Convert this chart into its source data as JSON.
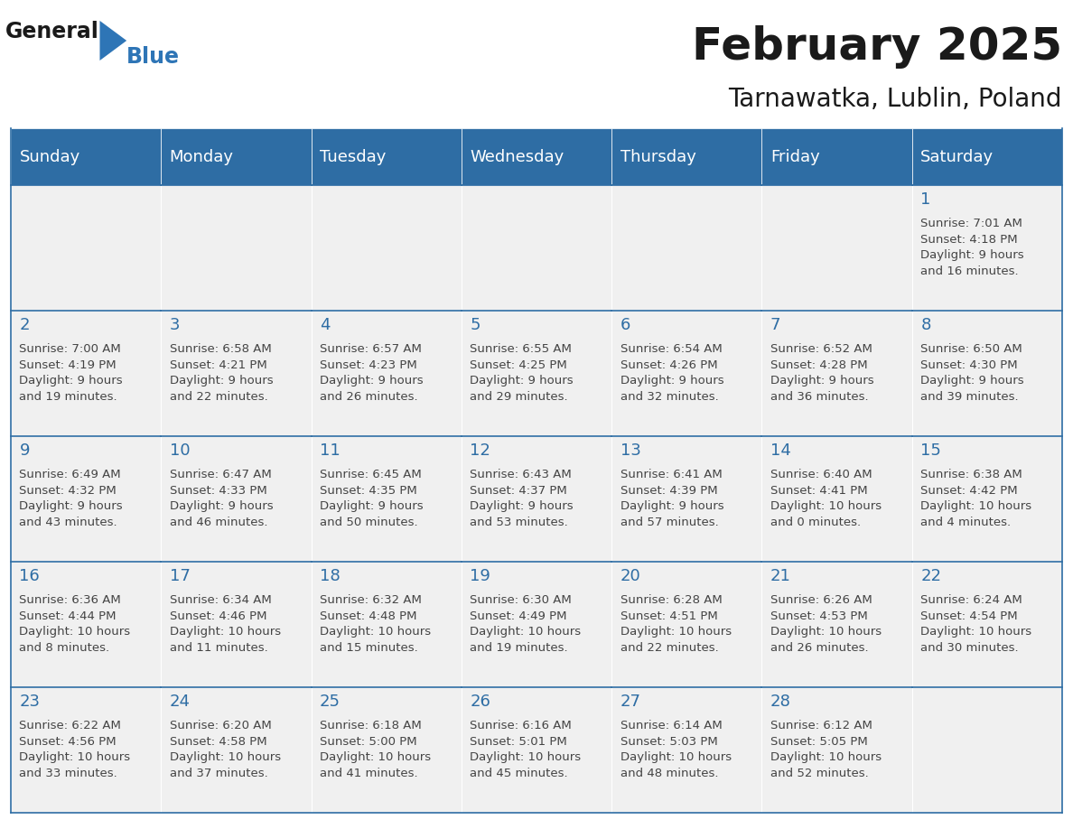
{
  "title": "February 2025",
  "subtitle": "Tarnawatka, Lublin, Poland",
  "header_bg": "#2E6DA4",
  "header_text_color": "#FFFFFF",
  "cell_bg_light": "#F0F0F0",
  "border_color": "#2E6DA4",
  "text_color": "#444444",
  "days_of_week": [
    "Sunday",
    "Monday",
    "Tuesday",
    "Wednesday",
    "Thursday",
    "Friday",
    "Saturday"
  ],
  "weeks": [
    [
      {
        "day": null,
        "info": null
      },
      {
        "day": null,
        "info": null
      },
      {
        "day": null,
        "info": null
      },
      {
        "day": null,
        "info": null
      },
      {
        "day": null,
        "info": null
      },
      {
        "day": null,
        "info": null
      },
      {
        "day": 1,
        "info": "Sunrise: 7:01 AM\nSunset: 4:18 PM\nDaylight: 9 hours\nand 16 minutes."
      }
    ],
    [
      {
        "day": 2,
        "info": "Sunrise: 7:00 AM\nSunset: 4:19 PM\nDaylight: 9 hours\nand 19 minutes."
      },
      {
        "day": 3,
        "info": "Sunrise: 6:58 AM\nSunset: 4:21 PM\nDaylight: 9 hours\nand 22 minutes."
      },
      {
        "day": 4,
        "info": "Sunrise: 6:57 AM\nSunset: 4:23 PM\nDaylight: 9 hours\nand 26 minutes."
      },
      {
        "day": 5,
        "info": "Sunrise: 6:55 AM\nSunset: 4:25 PM\nDaylight: 9 hours\nand 29 minutes."
      },
      {
        "day": 6,
        "info": "Sunrise: 6:54 AM\nSunset: 4:26 PM\nDaylight: 9 hours\nand 32 minutes."
      },
      {
        "day": 7,
        "info": "Sunrise: 6:52 AM\nSunset: 4:28 PM\nDaylight: 9 hours\nand 36 minutes."
      },
      {
        "day": 8,
        "info": "Sunrise: 6:50 AM\nSunset: 4:30 PM\nDaylight: 9 hours\nand 39 minutes."
      }
    ],
    [
      {
        "day": 9,
        "info": "Sunrise: 6:49 AM\nSunset: 4:32 PM\nDaylight: 9 hours\nand 43 minutes."
      },
      {
        "day": 10,
        "info": "Sunrise: 6:47 AM\nSunset: 4:33 PM\nDaylight: 9 hours\nand 46 minutes."
      },
      {
        "day": 11,
        "info": "Sunrise: 6:45 AM\nSunset: 4:35 PM\nDaylight: 9 hours\nand 50 minutes."
      },
      {
        "day": 12,
        "info": "Sunrise: 6:43 AM\nSunset: 4:37 PM\nDaylight: 9 hours\nand 53 minutes."
      },
      {
        "day": 13,
        "info": "Sunrise: 6:41 AM\nSunset: 4:39 PM\nDaylight: 9 hours\nand 57 minutes."
      },
      {
        "day": 14,
        "info": "Sunrise: 6:40 AM\nSunset: 4:41 PM\nDaylight: 10 hours\nand 0 minutes."
      },
      {
        "day": 15,
        "info": "Sunrise: 6:38 AM\nSunset: 4:42 PM\nDaylight: 10 hours\nand 4 minutes."
      }
    ],
    [
      {
        "day": 16,
        "info": "Sunrise: 6:36 AM\nSunset: 4:44 PM\nDaylight: 10 hours\nand 8 minutes."
      },
      {
        "day": 17,
        "info": "Sunrise: 6:34 AM\nSunset: 4:46 PM\nDaylight: 10 hours\nand 11 minutes."
      },
      {
        "day": 18,
        "info": "Sunrise: 6:32 AM\nSunset: 4:48 PM\nDaylight: 10 hours\nand 15 minutes."
      },
      {
        "day": 19,
        "info": "Sunrise: 6:30 AM\nSunset: 4:49 PM\nDaylight: 10 hours\nand 19 minutes."
      },
      {
        "day": 20,
        "info": "Sunrise: 6:28 AM\nSunset: 4:51 PM\nDaylight: 10 hours\nand 22 minutes."
      },
      {
        "day": 21,
        "info": "Sunrise: 6:26 AM\nSunset: 4:53 PM\nDaylight: 10 hours\nand 26 minutes."
      },
      {
        "day": 22,
        "info": "Sunrise: 6:24 AM\nSunset: 4:54 PM\nDaylight: 10 hours\nand 30 minutes."
      }
    ],
    [
      {
        "day": 23,
        "info": "Sunrise: 6:22 AM\nSunset: 4:56 PM\nDaylight: 10 hours\nand 33 minutes."
      },
      {
        "day": 24,
        "info": "Sunrise: 6:20 AM\nSunset: 4:58 PM\nDaylight: 10 hours\nand 37 minutes."
      },
      {
        "day": 25,
        "info": "Sunrise: 6:18 AM\nSunset: 5:00 PM\nDaylight: 10 hours\nand 41 minutes."
      },
      {
        "day": 26,
        "info": "Sunrise: 6:16 AM\nSunset: 5:01 PM\nDaylight: 10 hours\nand 45 minutes."
      },
      {
        "day": 27,
        "info": "Sunrise: 6:14 AM\nSunset: 5:03 PM\nDaylight: 10 hours\nand 48 minutes."
      },
      {
        "day": 28,
        "info": "Sunrise: 6:12 AM\nSunset: 5:05 PM\nDaylight: 10 hours\nand 52 minutes."
      },
      {
        "day": null,
        "info": null
      }
    ]
  ],
  "logo_general_color": "#1A1A1A",
  "logo_blue_color": "#2E75B6",
  "title_fontsize": 36,
  "subtitle_fontsize": 20,
  "day_number_fontsize": 13,
  "info_fontsize": 9.5,
  "header_fontsize": 13
}
